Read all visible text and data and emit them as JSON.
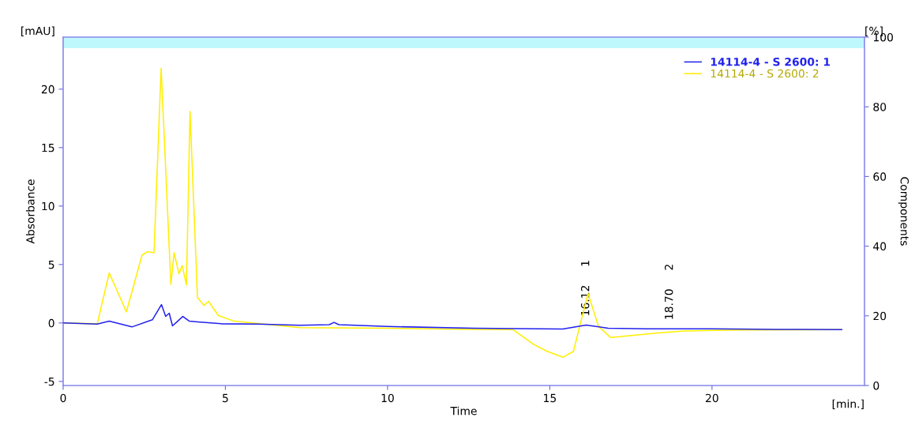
{
  "chart_data": {
    "type": "line",
    "xlabel": "Time",
    "ylabel": "Absorbance",
    "y2label": "Components",
    "xlim": [
      0,
      24.7
    ],
    "xticks": [
      0,
      5,
      10,
      15,
      20
    ],
    "ylim": [
      -5.35,
      24.45
    ],
    "yticks": [
      -5,
      0,
      5,
      10,
      15,
      20
    ],
    "y2lim": [
      0,
      100
    ],
    "y2ticks": [
      0,
      20,
      40,
      60,
      80,
      100
    ],
    "grid": false,
    "legend": "top right",
    "marker": "none",
    "line_style": "solid",
    "bands": [
      {
        "axis": "y2",
        "from": 96.8,
        "to": 100,
        "color": "#bff8fc"
      }
    ],
    "annotations": [
      "[mAU]",
      "[%]",
      "[min.]",
      {
        "text": "16.12",
        "x": 16.12,
        "y": -0.18
      },
      "1",
      {
        "text": "18.70",
        "x": 18.7,
        "y": -0.5
      },
      "2"
    ],
    "series": [
      {
        "name": "14114-4 - S 2600: 1",
        "color": "#2222ee",
        "x": [
          0,
          1.05,
          1.42,
          2.12,
          2.75,
          3.03,
          3.16,
          3.27,
          3.37,
          3.53,
          3.69,
          3.89,
          4.87,
          6.0,
          7.3,
          8.2,
          8.35,
          8.5,
          10.0,
          12.65,
          15.4,
          16.12,
          16.8,
          18.0,
          18.7,
          20.0,
          22.0,
          24.0
        ],
        "values": [
          0,
          -0.1,
          0.15,
          -0.34,
          0.27,
          1.57,
          0.56,
          0.83,
          -0.25,
          0.15,
          0.56,
          0.15,
          -0.07,
          -0.1,
          -0.2,
          -0.15,
          0.05,
          -0.15,
          -0.3,
          -0.45,
          -0.52,
          -0.18,
          -0.45,
          -0.5,
          -0.5,
          -0.5,
          -0.55,
          -0.57
        ]
      },
      {
        "name": "14114-4 - S 2600: 2",
        "color": "#ffee00",
        "x": [
          0,
          1.05,
          1.42,
          1.95,
          2.43,
          2.6,
          2.8,
          3.02,
          3.32,
          3.42,
          3.57,
          3.67,
          3.8,
          3.91,
          4.14,
          4.34,
          4.48,
          4.78,
          5.27,
          7.3,
          10.0,
          12.65,
          13.87,
          14.52,
          14.92,
          15.41,
          15.73,
          15.94,
          16.18,
          16.5,
          16.87,
          18.33,
          19.14,
          20.77,
          24.0
        ],
        "values": [
          0,
          -0.07,
          4.28,
          0.95,
          5.8,
          6.1,
          6.0,
          21.8,
          3.3,
          6.0,
          4.2,
          4.9,
          3.26,
          18.1,
          2.18,
          1.5,
          1.85,
          0.65,
          0.15,
          -0.4,
          -0.45,
          -0.55,
          -0.57,
          -1.86,
          -2.43,
          -2.93,
          -2.43,
          -0.07,
          2.52,
          -0.29,
          -1.24,
          -0.86,
          -0.68,
          -0.6,
          -0.57
        ]
      }
    ]
  }
}
